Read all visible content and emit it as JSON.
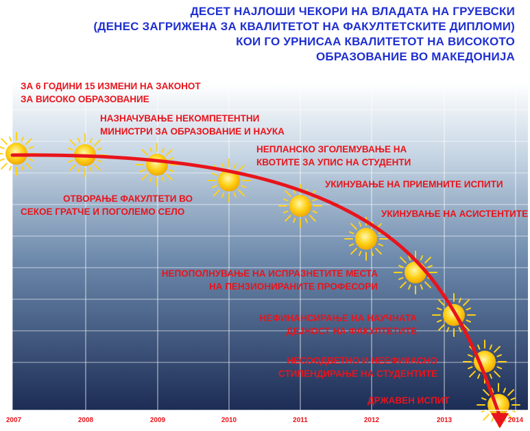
{
  "title_lines": [
    "ДЕСЕТ НАЈЛОШИ ЧЕКОРИ НА ВЛАДАТА НА ГРУЕВСКИ",
    "(ДЕНЕС ЗАГРИЖЕНА ЗА КВАЛИТЕТОТ НА ФАКУЛТЕТСКИТЕ ДИПЛОМИ)",
    "КОИ ГО УРНИСАА КВАЛИТЕТОТ НА ВИСОКОТО",
    "ОБРАЗОВАНИЕ ВО МАКЕДОНИЈА"
  ],
  "steps": [
    {
      "line1": "ЗА 6 ГОДИНИ 15 ИЗМЕНИ НА ЗАКОНОТ",
      "line2": "ЗА ВИСОКО ОБРАЗОВАНИЕ"
    },
    {
      "line1": "НАЗНАЧУВАЊЕ НЕКОМПЕТЕНТНИ",
      "line2": "МИНИСТРИ ЗА ОБРАЗОВАНИЕ И НАУКА"
    },
    {
      "line1": "ОТВОРАЊЕ ФАКУЛТЕТИ ВО",
      "line2": "СЕКОЕ ГРАТЧЕ И ПОГОЛЕМО СЕЛО"
    },
    {
      "line1": "НЕПЛАНСКО ЗГОЛЕМУВАЊЕ НА",
      "line2": "КВОТИТЕ ЗА УПИС НА СТУДЕНТИ"
    },
    {
      "line1": "УКИНУВАЊЕ НА ПРИЕМНИТЕ ИСПИТИ",
      "line2": ""
    },
    {
      "line1": "УКИНУВАЊЕ НА АСИСТЕНТИТЕ",
      "line2": ""
    },
    {
      "line1": "НЕПОПОЛНУВАЊЕ НА ИСПРАЗНЕТИТЕ МЕСТА",
      "line2": "НА ПЕНЗИОНИРАНИТЕ ПРОФЕСОРИ"
    },
    {
      "line1": "НЕФИНАНСИРАЊЕ НА НАУЧНАТА",
      "line2": "ДЕЈНОСТ НА ФАКУЛТЕТИТЕ"
    },
    {
      "line1": "НЕСООДВЕТНО И НЕЕФИКАСНО",
      "line2": "СТИПЕНДИРАЊЕ НА СТУДЕНТИТЕ"
    },
    {
      "line1": "ДРЖАВЕН ИСПИТ",
      "line2": ""
    }
  ],
  "years": [
    "2007",
    "2008",
    "2009",
    "2010",
    "2011",
    "2012",
    "2013",
    "2014"
  ],
  "colors": {
    "title": "#1f2fd0",
    "label": "#e8141c",
    "curve": "#e8141c",
    "sun": "#ffd21a",
    "grid": "#ffffff",
    "bg_top": "#ffffff",
    "bg_bottom": "#1c2c55"
  }
}
